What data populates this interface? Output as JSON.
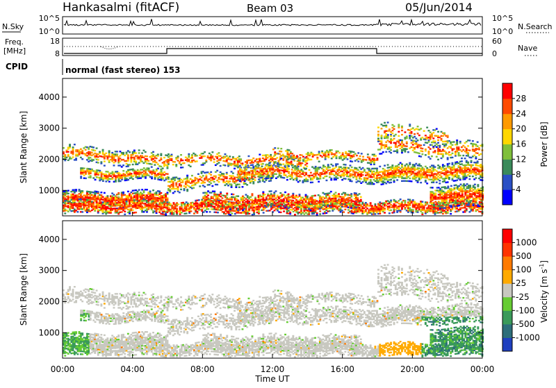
{
  "header": {
    "station": "Hankasalmi (fitACF)",
    "beam": "Beam 03",
    "date": "05/Jun/2014"
  },
  "noise_panel": {
    "left_label": "N.Sky",
    "right_label": "N.Search",
    "left_ticks": [
      "10^5",
      "10^0"
    ],
    "right_ticks": [
      "10^5",
      "10^0"
    ]
  },
  "freq_panel": {
    "left_label_1": "Freq.",
    "left_label_2": "[MHz]",
    "right_label": "Nave",
    "left_ticks": [
      "18",
      "8"
    ],
    "right_ticks": [
      "60",
      "0"
    ]
  },
  "cpid_panel": {
    "label": "CPID",
    "text": "normal (fast stereo) 153"
  },
  "time_axis": {
    "label": "Time UT",
    "ticks": [
      "00:00",
      "04:00",
      "08:00",
      "12:00",
      "16:00",
      "20:00",
      "00:00"
    ]
  },
  "chart_data": [
    {
      "type": "heatmap",
      "title": "Power",
      "ylabel": "Slant Range [km]",
      "xlabel": "",
      "xlim_hours": [
        0,
        24
      ],
      "ylim": [
        180,
        4600
      ],
      "yticks": [
        1000,
        2000,
        3000,
        4000
      ],
      "colorbar": {
        "label": "Power [dB]",
        "ticks": [
          "28",
          "24",
          "20",
          "16",
          "12",
          "8",
          "4"
        ],
        "colors": [
          "#0000ff",
          "#2a4fc4",
          "#3a8a5a",
          "#7fbf3a",
          "#ffd700",
          "#ff9a00",
          "#ff4a00",
          "#ff0000"
        ]
      }
    },
    {
      "type": "heatmap",
      "title": "Velocity",
      "ylabel": "Slant Range [km]",
      "xlabel": "Time UT",
      "xlim_hours": [
        0,
        24
      ],
      "ylim": [
        180,
        4600
      ],
      "yticks": [
        1000,
        2000,
        3000,
        4000
      ],
      "colorbar": {
        "label": "Velocity [m s-1]",
        "ticks": [
          "1000",
          "500",
          "100",
          "25",
          "-25",
          "-100",
          "-500",
          "-1000"
        ],
        "colors": [
          "#1f3fbf",
          "#2d6e7a",
          "#3a9a5a",
          "#66cc33",
          "#c8c8c0",
          "#ffaa00",
          "#ff7a00",
          "#ff3300",
          "#ff0000"
        ]
      }
    }
  ]
}
